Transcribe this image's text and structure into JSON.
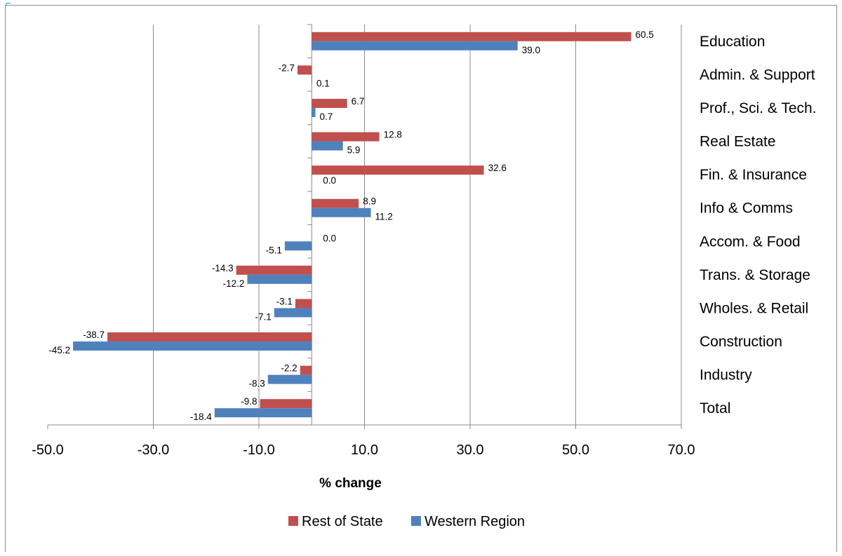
{
  "chart_data": {
    "type": "bar",
    "orientation": "horizontal",
    "categories": [
      "Total",
      "Industry",
      "Construction",
      "Wholes. & Retail",
      "Trans. & Storage",
      "Accom. & Food",
      "Info & Comms",
      "Fin. & Insurance",
      "Real Estate",
      "Prof., Sci. & Tech.",
      "Admin. & Support",
      "Education"
    ],
    "series": [
      {
        "name": "Rest of State",
        "color": "#c0504d",
        "values": [
          -9.8,
          -2.2,
          -38.7,
          -3.1,
          -14.3,
          0.0,
          8.9,
          32.6,
          12.8,
          6.7,
          -2.7,
          60.5
        ]
      },
      {
        "name": "Western Region",
        "color": "#4f81bd",
        "values": [
          -18.4,
          -8.3,
          -45.2,
          -7.1,
          -12.2,
          -5.1,
          11.2,
          0.0,
          5.9,
          0.7,
          0.1,
          39.0
        ]
      }
    ],
    "xlabel": "% change",
    "ylabel": "",
    "xlim": [
      -50,
      70
    ],
    "xticks": [
      -50,
      -30,
      -10,
      10,
      30,
      50,
      70
    ],
    "xtick_labels": [
      "-50.0",
      "-30.0",
      "-10.0",
      "10.0",
      "30.0",
      "50.0",
      "70.0"
    ],
    "category_labels_side": "right",
    "grid": "vertical",
    "legend": "bottom",
    "data_labels": true
  }
}
